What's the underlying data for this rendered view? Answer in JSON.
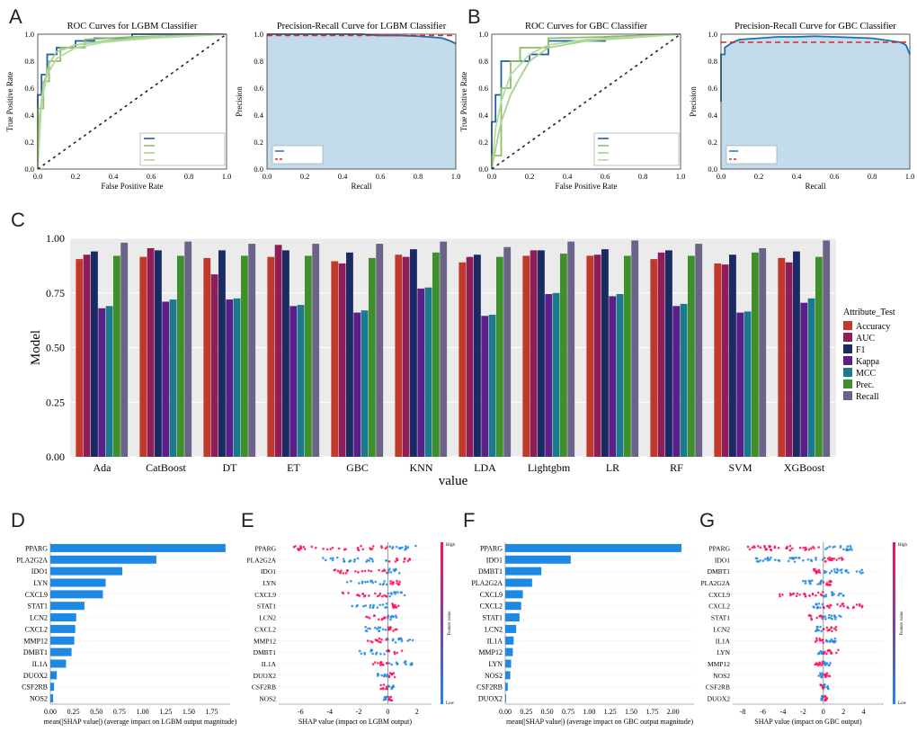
{
  "panel_letters": [
    "A",
    "B",
    "C",
    "D",
    "E",
    "F",
    "G"
  ],
  "chart_data": [
    {
      "id": "A1",
      "type": "line",
      "title": "ROC Curves for LGBM Classifier",
      "xlabel": "False Positive Rate",
      "ylabel": "True Positive Rate",
      "xlim": [
        0,
        1
      ],
      "ylim": [
        0,
        1
      ],
      "xticks": [
        "0.0",
        "0.2",
        "0.4",
        "0.6",
        "0.8",
        "1.0"
      ],
      "yticks": [
        "0.0",
        "0.2",
        "0.4",
        "0.6",
        "0.8",
        "1.0"
      ],
      "series": [
        {
          "color": "#1f5fa0",
          "x": [
            0,
            0,
            0.02,
            0.02,
            0.05,
            0.05,
            0.1,
            0.1,
            0.2,
            0.2,
            0.3,
            0.3,
            0.5,
            0.5,
            1
          ],
          "y": [
            0,
            0.55,
            0.55,
            0.7,
            0.7,
            0.85,
            0.85,
            0.9,
            0.9,
            0.95,
            0.95,
            0.97,
            0.97,
            1,
            1
          ]
        },
        {
          "color": "#8cbf6a",
          "x": [
            0,
            0,
            0.03,
            0.03,
            0.06,
            0.06,
            0.12,
            0.12,
            0.25,
            0.25,
            0.5,
            1
          ],
          "y": [
            0,
            0.45,
            0.45,
            0.65,
            0.65,
            0.8,
            0.8,
            0.9,
            0.9,
            0.96,
            0.98,
            1
          ]
        },
        {
          "color": "#a8d08d",
          "x": [
            0,
            0.01,
            0.03,
            0.06,
            0.1,
            0.2,
            0.35,
            0.6,
            1
          ],
          "y": [
            0,
            0.4,
            0.62,
            0.78,
            0.87,
            0.92,
            0.95,
            0.98,
            1
          ]
        },
        {
          "color": "#b6d9a0",
          "x": [
            0,
            0.02,
            0.05,
            0.1,
            0.2,
            0.35,
            0.6,
            1
          ],
          "y": [
            0,
            0.5,
            0.7,
            0.82,
            0.9,
            0.94,
            0.97,
            1
          ]
        }
      ],
      "legend_placement": "lower-right"
    },
    {
      "id": "A2",
      "type": "area",
      "title": "Precision-Recall Curve for LGBM Classifier",
      "xlabel": "Recall",
      "ylabel": "Precision",
      "xlim": [
        0,
        1
      ],
      "ylim": [
        0,
        1
      ],
      "xticks": [
        "0.0",
        "0.2",
        "0.4",
        "0.6",
        "0.8",
        "1.0"
      ],
      "yticks": [
        "0.0",
        "0.2",
        "0.4",
        "0.6",
        "0.8",
        "1.0"
      ],
      "x": [
        0,
        0.1,
        0.3,
        0.5,
        0.6,
        0.7,
        0.8,
        0.85,
        0.9,
        0.93,
        0.95,
        0.97,
        1
      ],
      "y": [
        1,
        1,
        1,
        1,
        0.99,
        0.99,
        0.985,
        0.98,
        0.975,
        0.97,
        0.96,
        0.95,
        0.93
      ],
      "baseline": 0.99,
      "legend_placement": "lower-left"
    },
    {
      "id": "B1",
      "type": "line",
      "title": "ROC Curves for GBC Classifier",
      "xlabel": "False Positive Rate",
      "ylabel": "True Positive Rate",
      "xlim": [
        0,
        1
      ],
      "ylim": [
        0,
        1
      ],
      "xticks": [
        "0.0",
        "0.2",
        "0.4",
        "0.6",
        "0.8",
        "1.0"
      ],
      "yticks": [
        "0.0",
        "0.2",
        "0.4",
        "0.6",
        "0.8",
        "1.0"
      ],
      "series": [
        {
          "color": "#1f5fa0",
          "x": [
            0,
            0,
            0.02,
            0.02,
            0.05,
            0.05,
            0.2,
            0.2,
            0.3,
            0.3,
            0.6,
            0.6,
            1
          ],
          "y": [
            0,
            0.35,
            0.35,
            0.55,
            0.55,
            0.8,
            0.8,
            0.85,
            0.85,
            0.95,
            0.95,
            0.98,
            1
          ]
        },
        {
          "color": "#8cbf6a",
          "x": [
            0,
            0,
            0.05,
            0.05,
            0.1,
            0.1,
            0.15,
            0.15,
            0.3,
            0.3,
            0.6,
            1
          ],
          "y": [
            0,
            0.1,
            0.1,
            0.6,
            0.6,
            0.8,
            0.8,
            0.9,
            0.9,
            0.97,
            0.98,
            1
          ]
        },
        {
          "color": "#a8d08d",
          "x": [
            0,
            0.02,
            0.05,
            0.1,
            0.15,
            0.2,
            0.3,
            0.5,
            0.8,
            1
          ],
          "y": [
            0,
            0.15,
            0.35,
            0.55,
            0.68,
            0.8,
            0.9,
            0.95,
            0.98,
            1
          ]
        },
        {
          "color": "#b6d9a0",
          "x": [
            0,
            0.02,
            0.05,
            0.1,
            0.2,
            0.3,
            0.5,
            1
          ],
          "y": [
            0,
            0.3,
            0.5,
            0.7,
            0.85,
            0.92,
            0.96,
            1
          ]
        }
      ],
      "legend_placement": "lower-right"
    },
    {
      "id": "B2",
      "type": "area",
      "title": "Precision-Recall Curve for GBC Classifier",
      "xlabel": "Recall",
      "ylabel": "Precision",
      "xlim": [
        0,
        1
      ],
      "ylim": [
        0,
        1
      ],
      "xticks": [
        "0.0",
        "0.2",
        "0.4",
        "0.6",
        "0.8",
        "1.0"
      ],
      "yticks": [
        "0.0",
        "0.2",
        "0.4",
        "0.6",
        "0.8",
        "1.0"
      ],
      "x": [
        0,
        0,
        0.02,
        0.02,
        0.05,
        0.08,
        0.1,
        0.2,
        0.3,
        0.4,
        0.5,
        0.6,
        0.7,
        0.8,
        0.9,
        0.95,
        0.98,
        1
      ],
      "y": [
        0.5,
        0.85,
        0.85,
        0.9,
        0.93,
        0.95,
        0.96,
        0.97,
        0.98,
        0.98,
        0.985,
        0.98,
        0.975,
        0.97,
        0.95,
        0.94,
        0.92,
        0.85
      ],
      "baseline": 0.94,
      "legend_placement": "lower-left"
    },
    {
      "id": "C",
      "type": "bar",
      "xlabel": "value",
      "ylabel": "Model",
      "ylim": [
        0,
        1
      ],
      "yticks": [
        "0.00",
        "0.25",
        "0.50",
        "0.75",
        "1.00"
      ],
      "categories": [
        "Ada",
        "CatBoost",
        "DT",
        "ET",
        "GBC",
        "KNN",
        "LDA",
        "Lightgbm",
        "LR",
        "RF",
        "SVM",
        "XGBoost"
      ],
      "legend_title": "Attribute_Test",
      "series": [
        {
          "name": "Accuracy",
          "color": "#c0392b",
          "values": [
            0.905,
            0.915,
            0.91,
            0.915,
            0.895,
            0.925,
            0.89,
            0.92,
            0.92,
            0.905,
            0.885,
            0.91
          ]
        },
        {
          "name": "AUC",
          "color": "#8e1e5a",
          "values": [
            0.925,
            0.955,
            0.835,
            0.97,
            0.885,
            0.915,
            0.915,
            0.945,
            0.925,
            0.935,
            0.88,
            0.89
          ]
        },
        {
          "name": "F1",
          "color": "#1a2a63",
          "values": [
            0.94,
            0.945,
            0.945,
            0.945,
            0.935,
            0.95,
            0.925,
            0.945,
            0.95,
            0.945,
            0.925,
            0.94
          ]
        },
        {
          "name": "Kappa",
          "color": "#5b1f8a",
          "values": [
            0.68,
            0.71,
            0.72,
            0.69,
            0.66,
            0.77,
            0.645,
            0.745,
            0.735,
            0.69,
            0.66,
            0.705
          ]
        },
        {
          "name": "MCC",
          "color": "#1b7a8c",
          "values": [
            0.69,
            0.72,
            0.725,
            0.695,
            0.67,
            0.775,
            0.65,
            0.75,
            0.745,
            0.7,
            0.665,
            0.725
          ]
        },
        {
          "name": "Prec.",
          "color": "#3f8f2b",
          "values": [
            0.92,
            0.92,
            0.92,
            0.92,
            0.91,
            0.935,
            0.915,
            0.93,
            0.92,
            0.92,
            0.935,
            0.915
          ]
        },
        {
          "name": "Recall",
          "color": "#6b6488",
          "values": [
            0.98,
            0.985,
            0.975,
            0.975,
            0.975,
            0.985,
            0.96,
            0.985,
            0.99,
            0.975,
            0.955,
            0.99
          ]
        }
      ]
    },
    {
      "id": "D",
      "type": "bar",
      "orientation": "horizontal",
      "xlabel": "mean(|SHAP value|) (average impact on LGBM output magnitude)",
      "xlim": [
        0,
        1.95
      ],
      "xticks": [
        "0.00",
        "0.25",
        "0.50",
        "0.75",
        "1.00",
        "1.25",
        "1.50",
        "1.75"
      ],
      "categories": [
        "PPARG",
        "PLA2G2A",
        "IDO1",
        "LYN",
        "CXCL9",
        "STAT1",
        "LCN2",
        "CXCL2",
        "MMP12",
        "DMBT1",
        "IL1A",
        "DUOX2",
        "CSF2RB",
        "NOS2"
      ],
      "values": [
        1.9,
        1.15,
        0.78,
        0.6,
        0.57,
        0.37,
        0.28,
        0.27,
        0.26,
        0.23,
        0.17,
        0.07,
        0.04,
        0.03
      ],
      "color": "#1e88e5"
    },
    {
      "id": "E",
      "type": "scatter",
      "xlabel": "SHAP value (impact on LGBM output)",
      "xlim": [
        -7.5,
        3
      ],
      "xticks": [
        "-6",
        "-4",
        "-2",
        "0",
        "2"
      ],
      "categories": [
        "PPARG",
        "PLA2G2A",
        "IDO1",
        "LYN",
        "CXCL9",
        "STAT1",
        "LCN2",
        "CXCL2",
        "MMP12",
        "DMBT1",
        "IL1A",
        "DUOX2",
        "CSF2RB",
        "NOS2"
      ],
      "spread_left": [
        6.8,
        4.5,
        4.0,
        2.8,
        3.2,
        2.5,
        1.5,
        1.8,
        1.5,
        2.0,
        1.2,
        0.8,
        0.5,
        0.3
      ],
      "spread_right": [
        2.0,
        1.6,
        0.9,
        0.9,
        1.2,
        0.8,
        0.7,
        0.7,
        1.8,
        1.0,
        1.7,
        0.5,
        0.4,
        0.3
      ],
      "colorbar": {
        "top": "High",
        "bottom": "Low",
        "label": "Feature value"
      }
    },
    {
      "id": "F",
      "type": "bar",
      "orientation": "horizontal",
      "xlabel": "mean(|SHAP value|) (average impact on GBC output magnitude)",
      "xlim": [
        0,
        2.25
      ],
      "xticks": [
        "0.00",
        "0.25",
        "0.50",
        "0.75",
        "1.00",
        "1.25",
        "1.50",
        "1.75",
        "2.00"
      ],
      "categories": [
        "PPARG",
        "IDO1",
        "DMBT1",
        "PLA2G2A",
        "CXCL9",
        "CXCL2",
        "STAT1",
        "LCN2",
        "IL1A",
        "MMP12",
        "LYN",
        "NOS2",
        "CSF2RB",
        "DUOX2"
      ],
      "values": [
        2.1,
        0.78,
        0.43,
        0.32,
        0.21,
        0.19,
        0.17,
        0.13,
        0.1,
        0.09,
        0.07,
        0.06,
        0.03,
        0.01
      ],
      "color": "#1e88e5"
    },
    {
      "id": "G",
      "type": "scatter",
      "xlabel": "SHAP value (impact on GBC output)",
      "xlim": [
        -9,
        6
      ],
      "xticks": [
        "-8",
        "-6",
        "-4",
        "-2",
        "0",
        "2",
        "4"
      ],
      "categories": [
        "PPARG",
        "IDO1",
        "DMBT1",
        "PLA2G2A",
        "CXCL9",
        "CXCL2",
        "STAT1",
        "LCN2",
        "IL1A",
        "LYN",
        "MMP12",
        "NOS2",
        "CSF2RB",
        "DUOX2"
      ],
      "spread_left": [
        8.0,
        7.0,
        1.0,
        2.0,
        4.5,
        1.0,
        1.5,
        0.8,
        0.8,
        0.5,
        1.2,
        0.5,
        0.3,
        0.2
      ],
      "spread_right": [
        3.0,
        2.5,
        4.0,
        1.0,
        2.0,
        4.0,
        2.0,
        1.5,
        1.5,
        1.5,
        0.8,
        0.8,
        0.6,
        0.4
      ],
      "colorbar": {
        "top": "High",
        "bottom": "Low",
        "label": "Feature value"
      }
    }
  ]
}
